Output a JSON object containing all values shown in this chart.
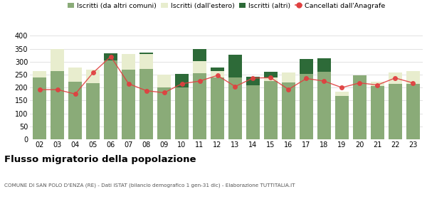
{
  "years": [
    "02",
    "03",
    "04",
    "05",
    "06",
    "07",
    "08",
    "09",
    "10",
    "11",
    "12",
    "13",
    "14",
    "15",
    "16",
    "17",
    "18",
    "19",
    "20",
    "21",
    "22",
    "23"
  ],
  "iscritti_comuni": [
    240,
    265,
    222,
    218,
    305,
    270,
    273,
    200,
    200,
    255,
    240,
    240,
    208,
    225,
    220,
    252,
    262,
    167,
    247,
    207,
    215,
    215
  ],
  "iscritti_estero": [
    25,
    85,
    55,
    50,
    0,
    60,
    58,
    50,
    0,
    48,
    25,
    0,
    0,
    15,
    38,
    0,
    0,
    18,
    0,
    15,
    42,
    48
  ],
  "iscritti_altri": [
    0,
    0,
    0,
    0,
    28,
    0,
    5,
    0,
    52,
    45,
    12,
    87,
    35,
    22,
    0,
    58,
    52,
    0,
    0,
    0,
    0,
    0
  ],
  "cancellati": [
    192,
    192,
    175,
    257,
    320,
    215,
    188,
    180,
    215,
    225,
    247,
    204,
    237,
    238,
    193,
    235,
    225,
    200,
    218,
    210,
    237,
    218
  ],
  "color_comuni": "#8aab78",
  "color_estero": "#e8edce",
  "color_altri": "#2d6a38",
  "color_cancellati": "#e04040",
  "title": "Flusso migratorio della popolazione",
  "subtitle": "COMUNE DI SAN POLO D'ENZA (RE) - Dati ISTAT (bilancio demografico 1 gen-31 dic) - Elaborazione TUTTITALIA.IT",
  "legend_labels": [
    "Iscritti (da altri comuni)",
    "Iscritti (dall'estero)",
    "Iscritti (altri)",
    "Cancellati dall'Anagrafe"
  ],
  "ylim": [
    0,
    400
  ],
  "yticks": [
    0,
    50,
    100,
    150,
    200,
    250,
    300,
    350,
    400
  ]
}
